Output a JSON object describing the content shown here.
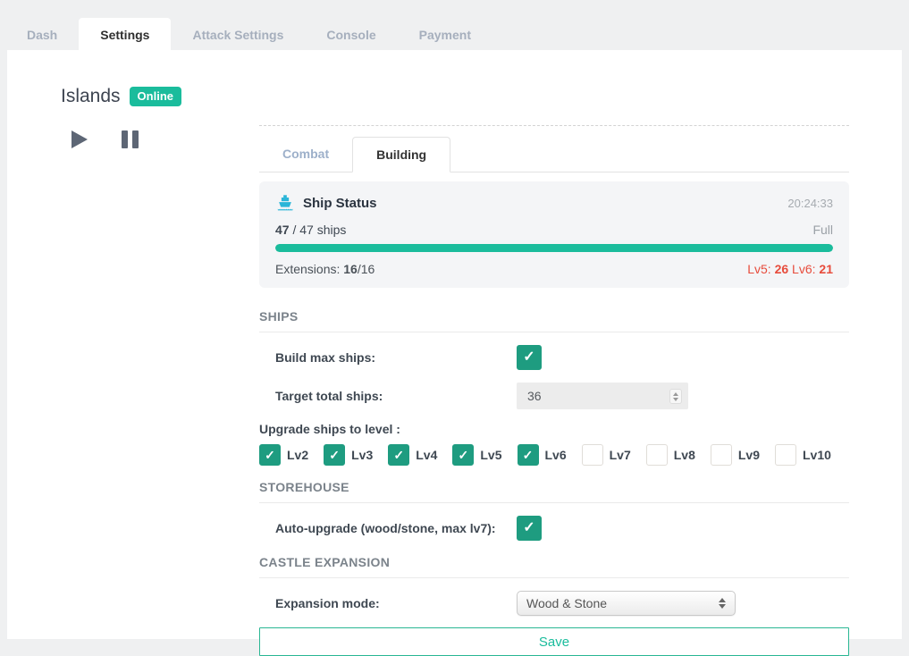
{
  "colors": {
    "accent_green": "#1abc9c",
    "checkbox_green": "#1e9c80",
    "alert_red": "#e74c3c",
    "ship_icon_cyan": "#2ab5d8"
  },
  "top_tabs": {
    "items": [
      {
        "label": "Dash",
        "active": false
      },
      {
        "label": "Settings",
        "active": true
      },
      {
        "label": "Attack Settings",
        "active": false
      },
      {
        "label": "Console",
        "active": false
      },
      {
        "label": "Payment",
        "active": false
      }
    ]
  },
  "header": {
    "title": "Islands",
    "status_badge": "Online"
  },
  "sub_tabs": {
    "items": [
      {
        "label": "Combat",
        "active": false
      },
      {
        "label": "Building",
        "active": true
      }
    ]
  },
  "ship_status": {
    "title": "Ship Status",
    "time": "20:24:33",
    "ships_current": "47",
    "ships_total_suffix": " / 47 ships",
    "capacity_label": "Full",
    "progress_percent": 100,
    "extensions_prefix": "Extensions: ",
    "extensions_current": "16",
    "extensions_total": "/16",
    "lv5_label": "Lv5: ",
    "lv5_value": "26",
    "lv6_label": " Lv6: ",
    "lv6_value": "21"
  },
  "ships_section": {
    "title": "SHIPS",
    "build_max_label": "Build max ships:",
    "build_max_checked": true,
    "target_total_label": "Target total ships:",
    "target_total_value": "36",
    "upgrade_label": "Upgrade ships to level :",
    "levels": [
      {
        "label": "Lv2",
        "checked": true
      },
      {
        "label": "Lv3",
        "checked": true
      },
      {
        "label": "Lv4",
        "checked": true
      },
      {
        "label": "Lv5",
        "checked": true
      },
      {
        "label": "Lv6",
        "checked": true
      },
      {
        "label": "Lv7",
        "checked": false
      },
      {
        "label": "Lv8",
        "checked": false
      },
      {
        "label": "Lv9",
        "checked": false
      },
      {
        "label": "Lv10",
        "checked": false
      }
    ]
  },
  "storehouse_section": {
    "title": "STOREHOUSE",
    "auto_upgrade_label": "Auto-upgrade (wood/stone, max lv7):",
    "auto_upgrade_checked": true
  },
  "castle_section": {
    "title": "CASTLE EXPANSION",
    "expansion_mode_label": "Expansion mode:",
    "expansion_mode_value": "Wood & Stone"
  },
  "save_button_label": "Save"
}
